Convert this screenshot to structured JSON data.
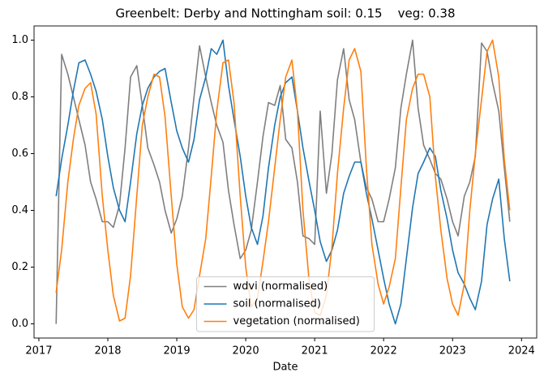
{
  "chart_data": {
    "type": "line",
    "title": "Greenbelt: Derby and Nottingham soil: 0.15    veg: 0.38",
    "x_label": "Date",
    "x": [
      2017.25,
      2017.33,
      2017.42,
      2017.5,
      2017.58,
      2017.67,
      2017.75,
      2017.83,
      2017.92,
      2018.0,
      2018.08,
      2018.17,
      2018.25,
      2018.33,
      2018.42,
      2018.5,
      2018.58,
      2018.67,
      2018.75,
      2018.83,
      2018.92,
      2019.0,
      2019.08,
      2019.17,
      2019.25,
      2019.33,
      2019.42,
      2019.5,
      2019.58,
      2019.67,
      2019.75,
      2019.83,
      2019.92,
      2020.0,
      2020.08,
      2020.17,
      2020.25,
      2020.33,
      2020.42,
      2020.5,
      2020.58,
      2020.67,
      2020.75,
      2020.83,
      2020.92,
      2021.0,
      2021.08,
      2021.17,
      2021.25,
      2021.33,
      2021.42,
      2021.5,
      2021.58,
      2021.67,
      2021.75,
      2021.83,
      2021.92,
      2022.0,
      2022.08,
      2022.17,
      2022.25,
      2022.33,
      2022.42,
      2022.5,
      2022.58,
      2022.67,
      2022.75,
      2022.83,
      2022.92,
      2023.0,
      2023.08,
      2023.17,
      2023.25,
      2023.33,
      2023.42,
      2023.5,
      2023.58,
      2023.67,
      2023.75,
      2023.83
    ],
    "series": [
      {
        "name": "wdvi (normalised)",
        "color": "#7f7f7f",
        "values": [
          0,
          0.95,
          0.88,
          0.8,
          0.72,
          0.63,
          0.5,
          0.44,
          0.36,
          0.36,
          0.34,
          0.42,
          0.62,
          0.87,
          0.91,
          0.77,
          0.62,
          0.56,
          0.5,
          0.4,
          0.32,
          0.37,
          0.45,
          0.62,
          0.8,
          0.98,
          0.87,
          0.78,
          0.7,
          0.64,
          0.47,
          0.35,
          0.23,
          0.26,
          0.33,
          0.5,
          0.66,
          0.78,
          0.77,
          0.84,
          0.65,
          0.62,
          0.5,
          0.31,
          0.3,
          0.28,
          0.75,
          0.46,
          0.6,
          0.86,
          0.97,
          0.79,
          0.72,
          0.57,
          0.48,
          0.44,
          0.36,
          0.36,
          0.44,
          0.55,
          0.76,
          0.88,
          1.0,
          0.76,
          0.63,
          0.58,
          0.53,
          0.51,
          0.44,
          0.36,
          0.31,
          0.45,
          0.5,
          0.59,
          0.99,
          0.96,
          0.85,
          0.75,
          0.55,
          0.36
        ]
      },
      {
        "name": "soil (normalised)",
        "color": "#1f77b4",
        "values": [
          0.45,
          0.58,
          0.7,
          0.82,
          0.92,
          0.93,
          0.88,
          0.82,
          0.72,
          0.59,
          0.48,
          0.4,
          0.36,
          0.5,
          0.67,
          0.77,
          0.83,
          0.87,
          0.89,
          0.9,
          0.78,
          0.68,
          0.62,
          0.57,
          0.65,
          0.79,
          0.87,
          0.97,
          0.95,
          1.0,
          0.84,
          0.72,
          0.59,
          0.45,
          0.34,
          0.28,
          0.38,
          0.55,
          0.7,
          0.8,
          0.85,
          0.87,
          0.75,
          0.62,
          0.5,
          0.4,
          0.29,
          0.22,
          0.26,
          0.33,
          0.46,
          0.52,
          0.57,
          0.57,
          0.46,
          0.37,
          0.26,
          0.16,
          0.07,
          0,
          0.07,
          0.23,
          0.41,
          0.53,
          0.57,
          0.62,
          0.59,
          0.47,
          0.37,
          0.26,
          0.18,
          0.14,
          0.09,
          0.05,
          0.15,
          0.35,
          0.44,
          0.51,
          0.3,
          0.15
        ]
      },
      {
        "name": "vegetation (normalised)",
        "color": "#ff7f0e",
        "values": [
          0.11,
          0.26,
          0.5,
          0.65,
          0.77,
          0.83,
          0.85,
          0.74,
          0.45,
          0.26,
          0.1,
          0.01,
          0.02,
          0.17,
          0.45,
          0.7,
          0.8,
          0.88,
          0.87,
          0.73,
          0.45,
          0.21,
          0.06,
          0.02,
          0.05,
          0.17,
          0.3,
          0.52,
          0.75,
          0.92,
          0.93,
          0.78,
          0.45,
          0.2,
          0.06,
          0.09,
          0.22,
          0.36,
          0.55,
          0.72,
          0.87,
          0.93,
          0.75,
          0.4,
          0.15,
          0.04,
          0.03,
          0.1,
          0.27,
          0.53,
          0.76,
          0.93,
          0.97,
          0.89,
          0.55,
          0.28,
          0.14,
          0.07,
          0.13,
          0.23,
          0.48,
          0.72,
          0.83,
          0.88,
          0.88,
          0.8,
          0.52,
          0.33,
          0.16,
          0.07,
          0.03,
          0.14,
          0.4,
          0.6,
          0.79,
          0.96,
          1.0,
          0.87,
          0.58,
          0.4
        ]
      }
    ],
    "xlim": [
      2016.93,
      2024.22
    ],
    "xticks": [
      2017,
      2018,
      2019,
      2020,
      2021,
      2022,
      2023,
      2024
    ],
    "ylim": [
      -0.05,
      1.05
    ],
    "yticks": [
      {
        "value": 0,
        "label": "0.0"
      },
      {
        "value": 0.2,
        "label": "0.2"
      },
      {
        "value": 0.4,
        "label": "0.4"
      },
      {
        "value": 0.6,
        "label": "0.6"
      },
      {
        "value": 0.8,
        "label": "0.8"
      },
      {
        "value": 1,
        "label": "1.0"
      }
    ],
    "grid": false,
    "legend": "lower center"
  }
}
